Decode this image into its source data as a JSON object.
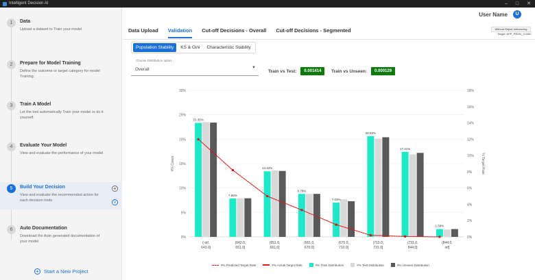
{
  "window": {
    "title": "Intelligent Decision AI"
  },
  "sidebar": {
    "steps": [
      {
        "num": "1",
        "title": "Data",
        "desc": "Upload a dataset to Train your model"
      },
      {
        "num": "2",
        "title": "Prepare for Model Training",
        "desc": "Define the outcome or target category for model Training."
      },
      {
        "num": "3",
        "title": "Train A Model",
        "desc": "Let the tool automatically Train your model or do it yourself."
      },
      {
        "num": "4",
        "title": "Evaluate Your Model",
        "desc": "View and evaluate the performance of your model"
      },
      {
        "num": "5",
        "title": "Build Your Decision",
        "desc": "View and evaluate the recommended action for each decision node"
      },
      {
        "num": "6",
        "title": "Auto Documentation",
        "desc": "Download the Auto generated documentation of your model"
      }
    ],
    "new_project": "Start a New Project"
  },
  "header": {
    "user_name": "User Name",
    "avatar_initial": "U"
  },
  "tabs": [
    "Data Upload",
    "Validation",
    "Cut-off Decisions - Overall",
    "Cut-off Decisions - Segmented"
  ],
  "badges": {
    "mode": "Without Reject Inferencing",
    "target": "Target: APP_PROD_CODE"
  },
  "subtabs": [
    "Population Stability",
    "KS & Gini",
    "Characteristic Stability"
  ],
  "distribution_select": {
    "label": "Choose Distribution option",
    "value": "Overall"
  },
  "metrics": {
    "train_vs_test_label": "Train vs Test:",
    "train_vs_test_value": "0.001414",
    "train_vs_unseen_label": "Train vs Unseen:",
    "train_vs_unseen_value": "0.000129"
  },
  "colors": {
    "accent": "#1a6fd8",
    "metric_green": "#0e7a0e",
    "train": "#1de9c9",
    "test": "#d9d9d9",
    "unseen": "#595959",
    "line": "#e01515"
  },
  "chart_data": {
    "type": "bar",
    "categories": [
      "(-inf, 643.0]",
      "(643.0, 651.0]",
      "(651.0, 661.0]",
      "(661.0, 670.0]",
      "(670.0, 710.0]",
      "(710.0, 731.0]",
      "(731.0, 844.0]",
      "(844.0, inf]"
    ],
    "series": [
      {
        "name": "#% Train Distribution",
        "values": [
          23.35,
          7.85,
          13.43,
          8.79,
          7.03,
          20.63,
          17.41,
          1.59
        ]
      },
      {
        "name": "#% Test Distribution",
        "values": [
          23.5,
          7.9,
          13.6,
          8.8,
          7.7,
          20.1,
          16.9,
          1.5
        ]
      },
      {
        "name": "#% Unseen Distribution",
        "values": [
          23.4,
          7.9,
          13.5,
          8.8,
          7.3,
          20.4,
          17.2,
          1.6
        ]
      }
    ],
    "bar_labels": [
      "23.35%",
      "7.85%",
      "13.43%",
      "8.79%",
      "7.03%",
      "20.63%",
      "17.41%",
      "1.59%"
    ],
    "line_series": [
      {
        "name": "#% Predicted Target Rate",
        "values": [
          12.0,
          8.2,
          5.0,
          3.3,
          1.5,
          0.2,
          0.05,
          0.0
        ]
      },
      {
        "name": "#% Actual Target Rate",
        "values": [
          12.0,
          8.2,
          5.0,
          3.3,
          1.5,
          0.2,
          0.05,
          0.0
        ]
      }
    ],
    "ylabel": "#% Cases",
    "y2label": "% Target Rate",
    "ylim": [
      0,
      30
    ],
    "y2lim": [
      0,
      18
    ],
    "yticks": [
      "0%",
      "5%",
      "10%",
      "15%",
      "20%",
      "25%",
      "30%"
    ],
    "y2ticks": [
      "0%",
      "2%",
      "4%",
      "6%",
      "8%",
      "10%",
      "12%",
      "14%",
      "16%",
      "18%"
    ],
    "grid": true,
    "legend": "bottom"
  }
}
